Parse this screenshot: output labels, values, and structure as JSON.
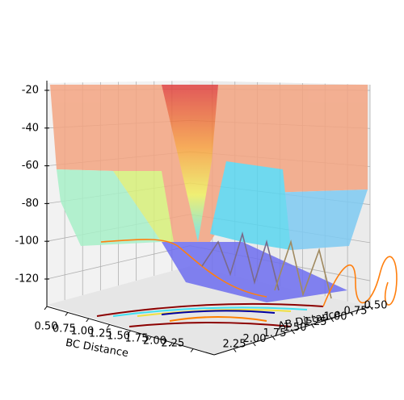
{
  "chart_data": {
    "type": "surface3d",
    "xlabel": "BC Distance",
    "ylabel": "AB Distance",
    "xlim": [
      0.5,
      2.5
    ],
    "xticks": [
      {
        "value": 0.5,
        "label": "0.50"
      },
      {
        "value": 0.75,
        "label": "0.75"
      },
      {
        "value": 1.0,
        "label": "1.00"
      },
      {
        "value": 1.25,
        "label": "1.25"
      },
      {
        "value": 1.5,
        "label": "1.50"
      },
      {
        "value": 1.75,
        "label": "1.75"
      },
      {
        "value": 2.0,
        "label": "2.00"
      },
      {
        "value": 2.25,
        "label": "2.25"
      }
    ],
    "ylim": [
      0.5,
      2.5
    ],
    "yticks": [
      {
        "value": 0.5,
        "label": "0.50"
      },
      {
        "value": 0.75,
        "label": "0.75"
      },
      {
        "value": 1.0,
        "label": "1.00"
      },
      {
        "value": 1.25,
        "label": "1.25"
      },
      {
        "value": 1.5,
        "label": "1.50"
      },
      {
        "value": 1.75,
        "label": "1.75"
      },
      {
        "value": 2.0,
        "label": "2.00"
      },
      {
        "value": 2.25,
        "label": "2.25"
      }
    ],
    "zlim": [
      -135,
      -15
    ],
    "zticks": [
      -20,
      -40,
      -60,
      -80,
      -100,
      -120
    ],
    "grid": true
  }
}
